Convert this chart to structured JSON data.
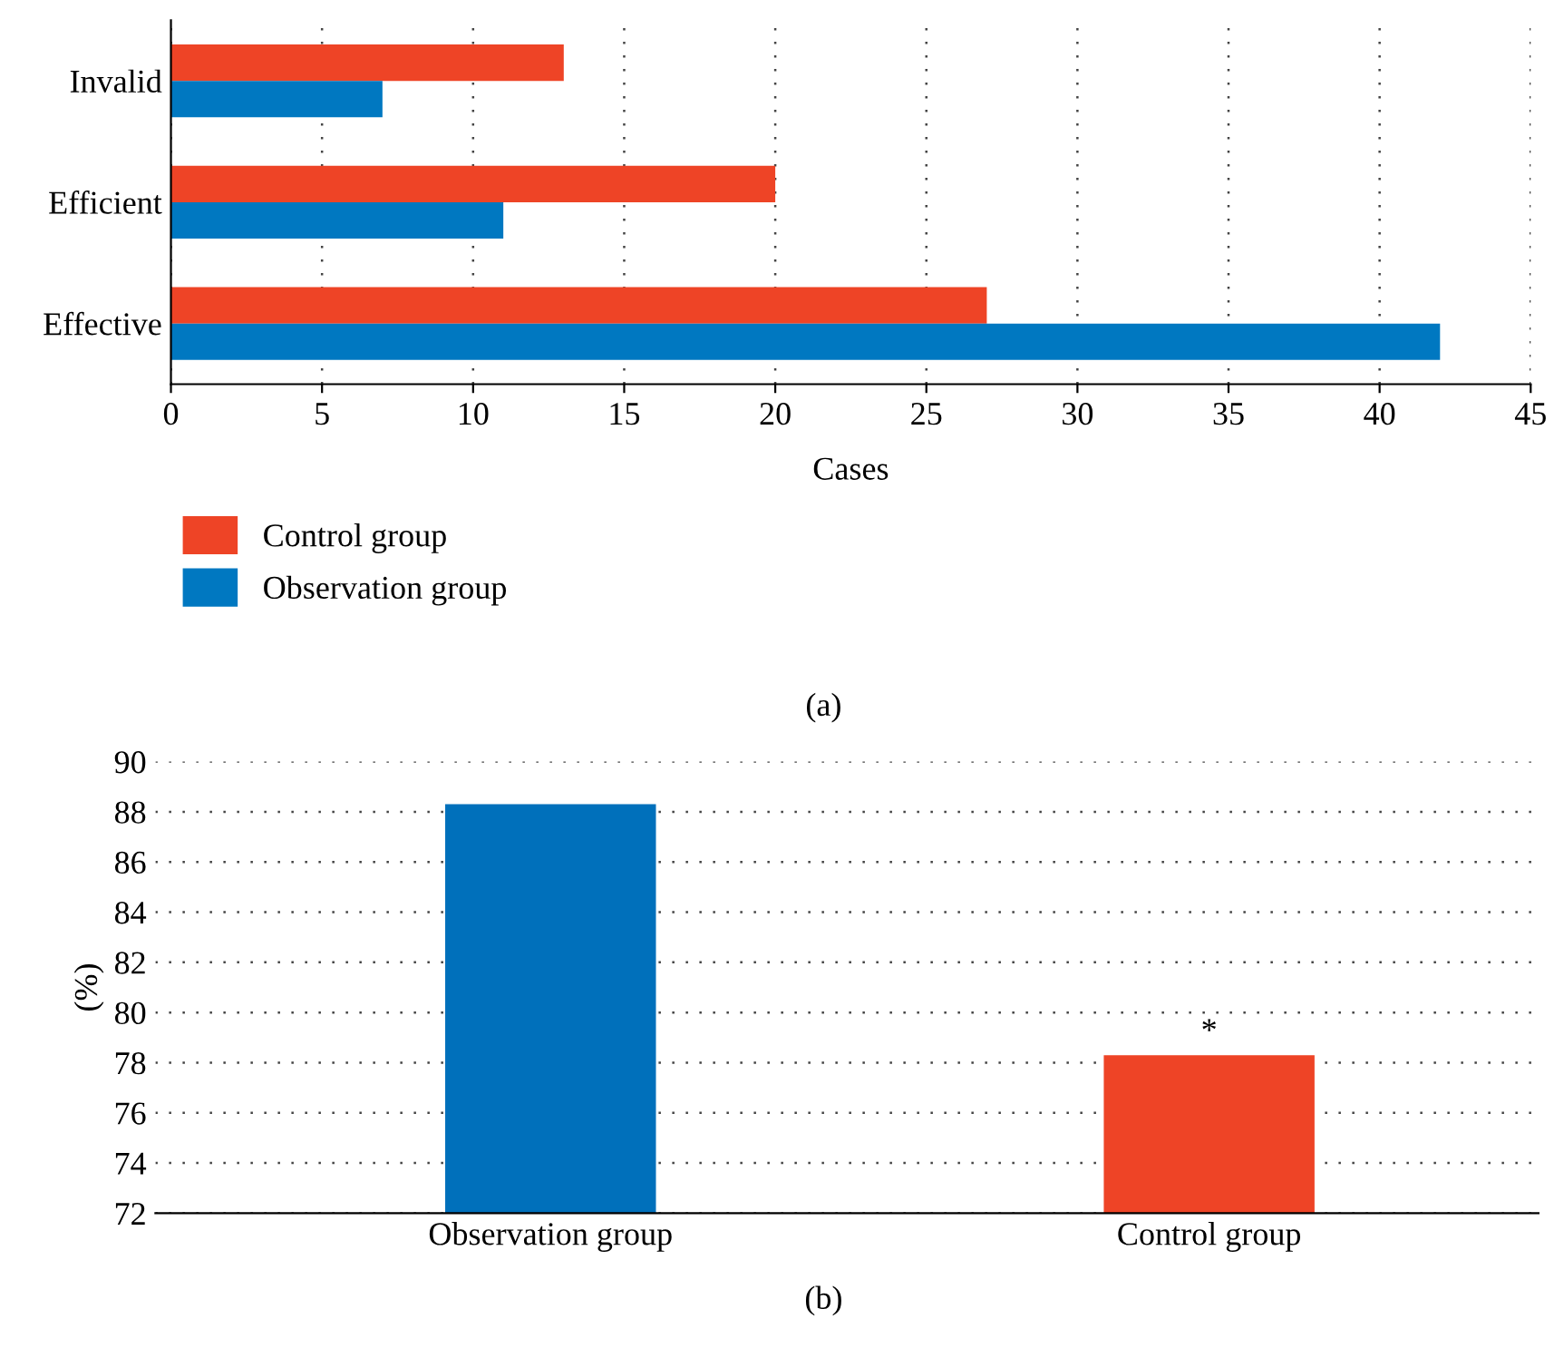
{
  "chart_data": [
    {
      "type": "bar",
      "orientation": "horizontal",
      "categories": [
        "Invalid",
        "Efficient",
        "Effective"
      ],
      "xlabel": "Cases",
      "series": [
        {
          "name": "Control group",
          "color": "#ee4426",
          "values": [
            13,
            20,
            27
          ]
        },
        {
          "name": "Observation group",
          "color": "#0078c1",
          "values": [
            7,
            11,
            42
          ]
        }
      ],
      "xlim": [
        0,
        45
      ],
      "xticks": [
        0,
        5,
        10,
        15,
        20,
        25,
        30,
        35,
        40,
        45
      ],
      "grid": "x",
      "legend": "bottom left",
      "annotations": [
        "(a)"
      ]
    },
    {
      "type": "bar",
      "categories": [
        "Observation group",
        "Control group"
      ],
      "ylabel": "(%)",
      "values": [
        88.3,
        78.3
      ],
      "colors": [
        "#0070bb",
        "#ee4426"
      ],
      "ylim": [
        72,
        90
      ],
      "yticks": [
        72,
        74,
        76,
        78,
        80,
        82,
        84,
        86,
        88,
        90
      ],
      "grid": "y",
      "annotations": [
        {
          "text": "*",
          "x": "Control group",
          "y": 78.3
        },
        "(b)"
      ]
    }
  ]
}
